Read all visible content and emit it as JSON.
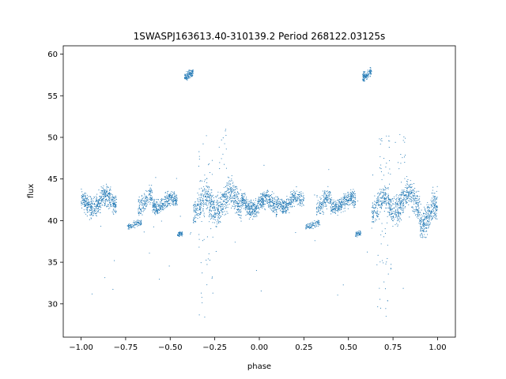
{
  "chart_data": {
    "type": "scatter",
    "title": "1SWASPJ163613.40-310139.2 Period 268122.03125s",
    "xlabel": "phase",
    "ylabel": "flux",
    "xlim": [
      -1.1,
      1.1
    ],
    "ylim": [
      26,
      61
    ],
    "xticks": [
      -1.0,
      -0.75,
      -0.5,
      -0.25,
      0.0,
      0.25,
      0.5,
      0.75,
      1.0
    ],
    "xtick_labels": [
      "−1.00",
      "−0.75",
      "−0.50",
      "−0.25",
      "0.00",
      "0.25",
      "0.50",
      "0.75",
      "1.00"
    ],
    "yticks": [
      30,
      35,
      40,
      45,
      50,
      55,
      60
    ],
    "ytick_labels": [
      "30",
      "35",
      "40",
      "45",
      "50",
      "55",
      "60"
    ],
    "grid": false,
    "marker_color": "#1f77b4",
    "series": [
      {
        "clusters": [
          {
            "x": [
              -1.0,
              -0.8
            ],
            "y": [
              40.0,
              44.5
            ],
            "n": 520
          },
          {
            "x": [
              -0.74,
              -0.66
            ],
            "y": [
              38.8,
              40.2
            ],
            "n": 90
          },
          {
            "x": [
              -0.68,
              -0.6
            ],
            "y": [
              40.0,
              44.5
            ],
            "n": 160
          },
          {
            "x": [
              -0.6,
              -0.46
            ],
            "y": [
              40.5,
              43.8
            ],
            "n": 320
          },
          {
            "x": [
              -0.46,
              -0.43
            ],
            "y": [
              37.8,
              39.0
            ],
            "n": 50
          },
          {
            "x": [
              -0.42,
              -0.37
            ],
            "y": [
              56.5,
              58.5
            ],
            "n": 120
          },
          {
            "x": [
              -0.37,
              -0.3
            ],
            "y": [
              38.8,
              45.0
            ],
            "n": 150
          },
          {
            "x": [
              -0.3,
              -0.1
            ],
            "y": [
              39.0,
              45.5
            ],
            "n": 520
          },
          {
            "x": [
              -0.1,
              0.1
            ],
            "y": [
              40.0,
              44.0
            ],
            "n": 520
          },
          {
            "x": [
              0.1,
              0.25
            ],
            "y": [
              40.5,
              44.0
            ],
            "n": 320
          },
          {
            "x": [
              0.26,
              0.34
            ],
            "y": [
              38.8,
              40.2
            ],
            "n": 90
          },
          {
            "x": [
              0.32,
              0.4
            ],
            "y": [
              40.0,
              44.5
            ],
            "n": 160
          },
          {
            "x": [
              0.4,
              0.54
            ],
            "y": [
              40.5,
              43.8
            ],
            "n": 320
          },
          {
            "x": [
              0.54,
              0.57
            ],
            "y": [
              37.8,
              39.0
            ],
            "n": 50
          },
          {
            "x": [
              0.58,
              0.63
            ],
            "y": [
              56.5,
              58.5
            ],
            "n": 120
          },
          {
            "x": [
              0.63,
              0.7
            ],
            "y": [
              38.8,
              45.0
            ],
            "n": 150
          },
          {
            "x": [
              0.7,
              0.9
            ],
            "y": [
              39.0,
              45.5
            ],
            "n": 520
          },
          {
            "x": [
              0.9,
              1.0
            ],
            "y": [
              37.5,
              44.0
            ],
            "n": 300
          }
        ],
        "outliers": [
          {
            "x": [
              -0.34,
              -0.26
            ],
            "y": [
              28.0,
              50.5
            ],
            "n": 60
          },
          {
            "x": [
              0.66,
              0.74
            ],
            "y": [
              28.0,
              50.5
            ],
            "n": 60
          },
          {
            "x": [
              -0.24,
              -0.18
            ],
            "y": [
              46.0,
              51.0
            ],
            "n": 14
          },
          {
            "x": [
              0.76,
              0.82
            ],
            "y": [
              46.0,
              51.0
            ],
            "n": 14
          },
          {
            "x": [
              -1.0,
              1.0
            ],
            "y": [
              31.0,
              47.0
            ],
            "n": 40
          }
        ]
      }
    ]
  }
}
